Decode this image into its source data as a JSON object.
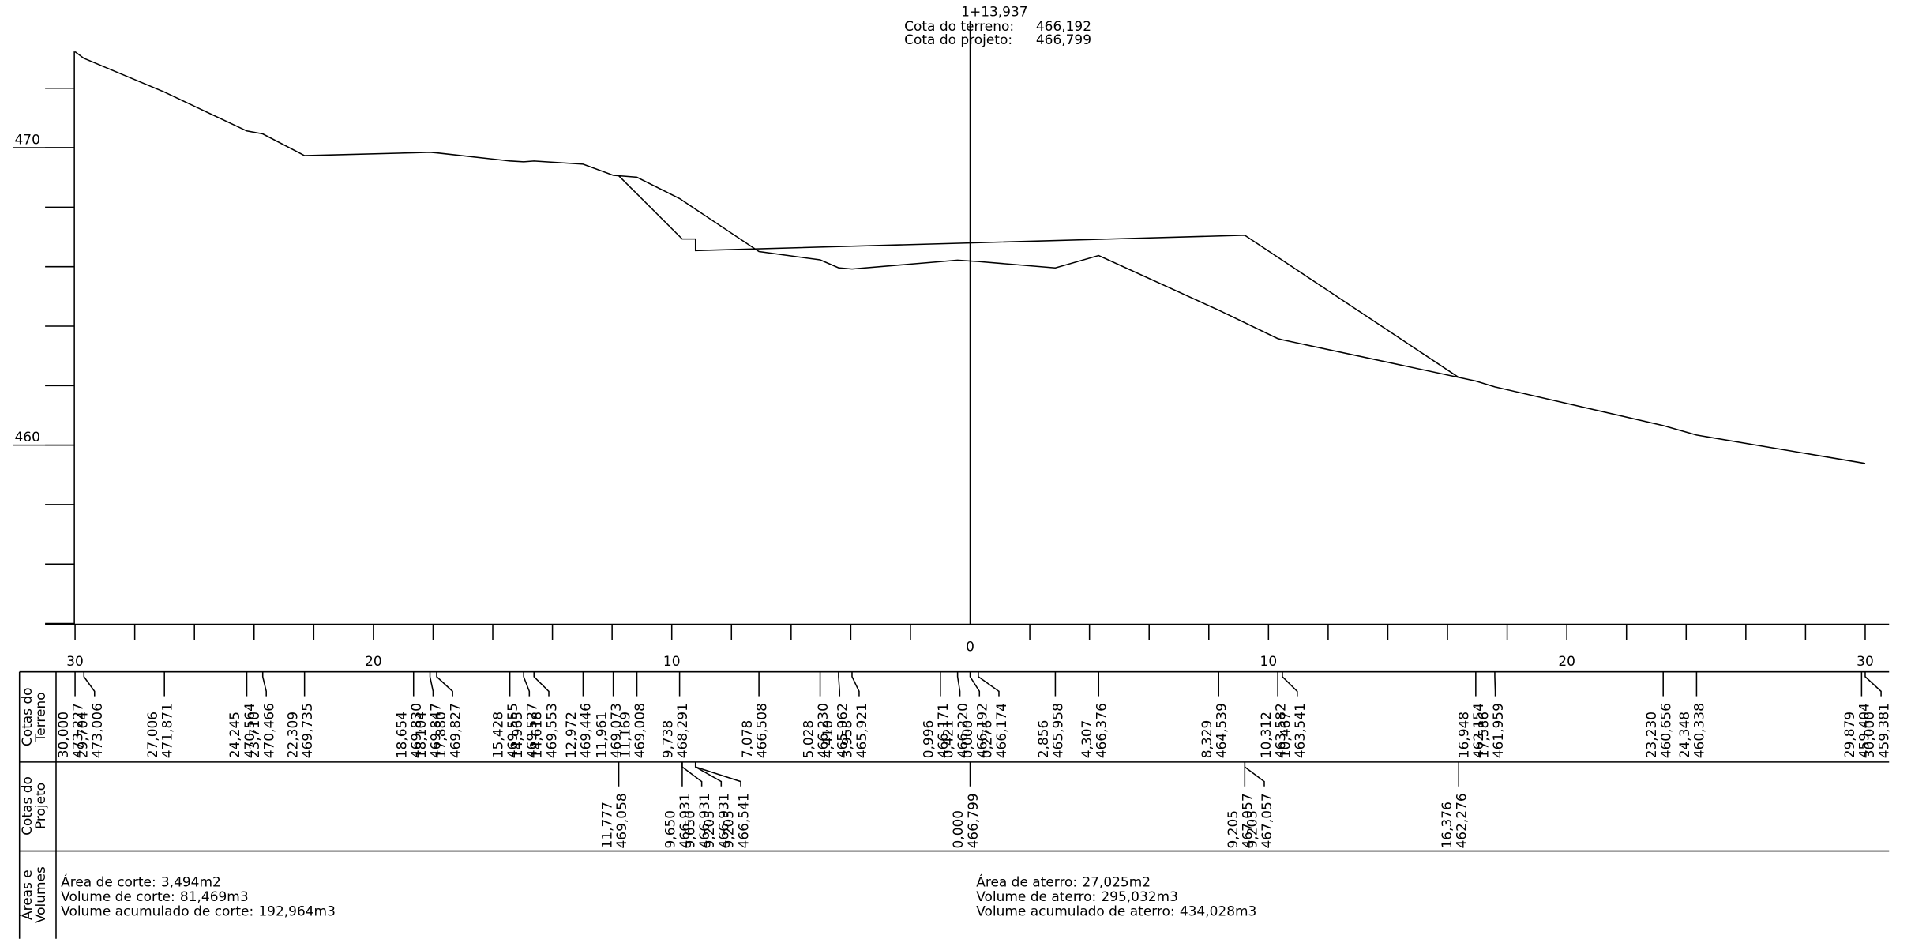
{
  "station": {
    "name": "1+13,937",
    "terrain_label": "Cota do terreno:",
    "terrain_elevation": "466,192",
    "project_label": "Cota do projeto:",
    "project_elevation": "466,799"
  },
  "axes": {
    "y_ticks": [
      454,
      456,
      458,
      460,
      462,
      464,
      466,
      468,
      470,
      472
    ],
    "y_labels": [
      460,
      470
    ],
    "x_ticks": [
      2,
      4,
      6,
      8,
      10,
      12,
      14,
      16,
      18,
      20,
      22,
      24,
      26,
      28,
      30
    ],
    "x_labels": [
      0,
      10,
      20,
      30
    ]
  },
  "table": {
    "rows": [
      {
        "title": [
          "Cotas do",
          "Terreno"
        ]
      },
      {
        "title": [
          "Cotas do",
          "Projeto"
        ]
      },
      {
        "title": [
          "Áreas e",
          "Volumes"
        ]
      }
    ]
  },
  "terrain": {
    "left": [
      {
        "offset": 30.0,
        "offset_label": "30,000",
        "elevation": 473.227,
        "elevation_label": "473,227"
      },
      {
        "offset": 29.704,
        "offset_label": "29,704",
        "elevation": 473.006,
        "elevation_label": "473,006"
      },
      {
        "offset": 27.006,
        "offset_label": "27,006",
        "elevation": 471.871,
        "elevation_label": "471,871"
      },
      {
        "offset": 24.245,
        "offset_label": "24,245",
        "elevation": 470.564,
        "elevation_label": "470,564"
      },
      {
        "offset": 23.71,
        "offset_label": "23,710",
        "elevation": 470.466,
        "elevation_label": "470,466"
      },
      {
        "offset": 22.309,
        "offset_label": "22,309",
        "elevation": 469.735,
        "elevation_label": "469,735"
      },
      {
        "offset": 18.654,
        "offset_label": "18,654",
        "elevation": 469.83,
        "elevation_label": "469,830"
      },
      {
        "offset": 18.104,
        "offset_label": "18,104",
        "elevation": 469.847,
        "elevation_label": "469,847"
      },
      {
        "offset": 17.88,
        "offset_label": "17,880",
        "elevation": 469.827,
        "elevation_label": "469,827"
      },
      {
        "offset": 15.428,
        "offset_label": "15,428",
        "elevation": 469.555,
        "elevation_label": "469,555"
      },
      {
        "offset": 14.965,
        "offset_label": "14,965",
        "elevation": 469.527,
        "elevation_label": "469,527"
      },
      {
        "offset": 14.618,
        "offset_label": "14,618",
        "elevation": 469.553,
        "elevation_label": "469,553"
      },
      {
        "offset": 12.972,
        "offset_label": "12,972",
        "elevation": 469.446,
        "elevation_label": "469,446"
      },
      {
        "offset": 11.961,
        "offset_label": "11,961",
        "elevation": 469.073,
        "elevation_label": "469,073"
      },
      {
        "offset": 11.169,
        "offset_label": "11,169",
        "elevation": 469.008,
        "elevation_label": "469,008"
      },
      {
        "offset": 9.738,
        "offset_label": "9,738",
        "elevation": 468.291,
        "elevation_label": "468,291"
      },
      {
        "offset": 7.078,
        "offset_label": "7,078",
        "elevation": 466.508,
        "elevation_label": "466,508"
      },
      {
        "offset": 5.028,
        "offset_label": "5,028",
        "elevation": 466.23,
        "elevation_label": "466,230"
      },
      {
        "offset": 4.41,
        "offset_label": "4,410",
        "elevation": 465.962,
        "elevation_label": "465,962"
      },
      {
        "offset": 3.958,
        "offset_label": "3,958",
        "elevation": 465.921,
        "elevation_label": "465,921"
      },
      {
        "offset": 0.996,
        "offset_label": "0,996",
        "elevation": 466.171,
        "elevation_label": "466,171"
      },
      {
        "offset": 0.421,
        "offset_label": "0,421",
        "elevation": 466.22,
        "elevation_label": "466,220"
      },
      {
        "offset": 0.0,
        "offset_label": "0,000",
        "elevation": 466.192,
        "elevation_label": "466,192"
      }
    ],
    "right": [
      {
        "offset": 0.276,
        "offset_label": "0,276",
        "elevation": 466.174,
        "elevation_label": "466,174"
      },
      {
        "offset": 2.856,
        "offset_label": "2,856",
        "elevation": 465.958,
        "elevation_label": "465,958"
      },
      {
        "offset": 4.307,
        "offset_label": "4,307",
        "elevation": 466.376,
        "elevation_label": "466,376"
      },
      {
        "offset": 8.329,
        "offset_label": "8,329",
        "elevation": 464.539,
        "elevation_label": "464,539"
      },
      {
        "offset": 10.312,
        "offset_label": "10,312",
        "elevation": 463.582,
        "elevation_label": "463,582"
      },
      {
        "offset": 10.467,
        "offset_label": "10,467",
        "elevation": 463.541,
        "elevation_label": "463,541"
      },
      {
        "offset": 16.948,
        "offset_label": "16,948",
        "elevation": 462.154,
        "elevation_label": "462,154"
      },
      {
        "offset": 17.586,
        "offset_label": "17,586",
        "elevation": 461.959,
        "elevation_label": "461,959"
      },
      {
        "offset": 23.23,
        "offset_label": "23,230",
        "elevation": 460.656,
        "elevation_label": "460,656"
      },
      {
        "offset": 24.348,
        "offset_label": "24,348",
        "elevation": 460.338,
        "elevation_label": "460,338"
      },
      {
        "offset": 29.879,
        "offset_label": "29,879",
        "elevation": 459.404,
        "elevation_label": "459,404"
      },
      {
        "offset": 30.0,
        "offset_label": "30,000",
        "elevation": 459.381,
        "elevation_label": "459,381"
      }
    ]
  },
  "project": {
    "left": [
      {
        "offset": 11.777,
        "offset_label": "11,777",
        "elevation": 469.058,
        "elevation_label": "469,058"
      },
      {
        "offset": 9.65,
        "offset_label": "9,650",
        "elevation": 466.931,
        "elevation_label": "466,931"
      },
      {
        "offset": 9.65,
        "offset_label": "9,650",
        "elevation": 466.931,
        "elevation_label": "466,931"
      },
      {
        "offset": 9.205,
        "offset_label": "9,205",
        "elevation": 466.931,
        "elevation_label": "466,931"
      },
      {
        "offset": 9.205,
        "offset_label": "9,205",
        "elevation": 466.541,
        "elevation_label": "466,541"
      }
    ],
    "right": [
      {
        "offset": 0.0,
        "offset_label": "0,000",
        "elevation": 466.799,
        "elevation_label": "466,799"
      },
      {
        "offset": 9.205,
        "offset_label": "9,205",
        "elevation": 467.057,
        "elevation_label": "467,057"
      },
      {
        "offset": 9.205,
        "offset_label": "9,205",
        "elevation": 467.057,
        "elevation_label": "467,057"
      },
      {
        "offset": 16.376,
        "offset_label": "16,376",
        "elevation": 462.276,
        "elevation_label": "462,276"
      }
    ]
  },
  "areas": {
    "cut": [
      {
        "label": "Área de corte:",
        "value": "3,494m2"
      },
      {
        "label": "Volume de corte:",
        "value": "81,469m3"
      },
      {
        "label": "Volume acumulado de corte:",
        "value": "192,964m3"
      }
    ],
    "fill": [
      {
        "label": "Área de aterro:",
        "value": "27,025m2"
      },
      {
        "label": "Volume de aterro:",
        "value": "295,032m3"
      },
      {
        "label": "Volume acumulado de aterro:",
        "value": "434,028m3"
      }
    ]
  }
}
